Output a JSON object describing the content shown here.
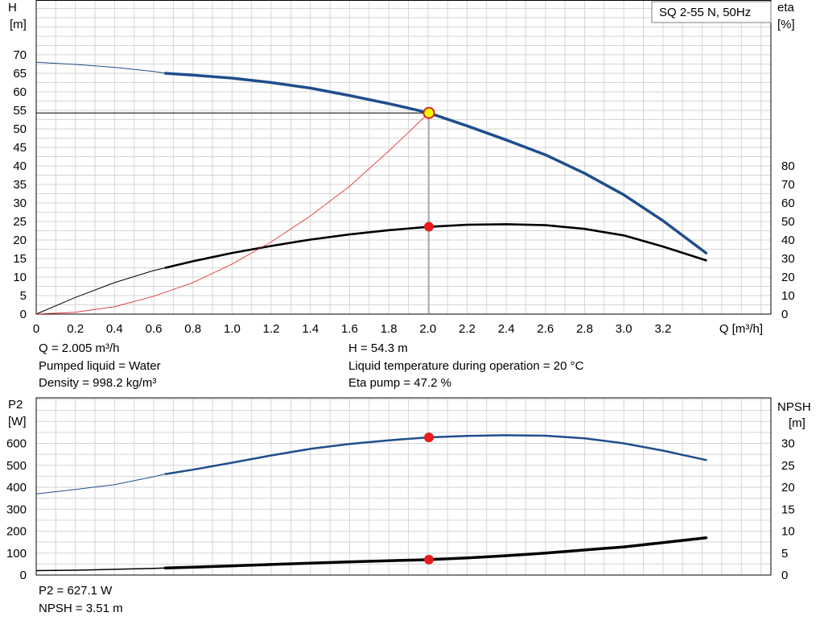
{
  "header": {
    "pump_name": "SQ 2-55 N, 50Hz"
  },
  "results_top": {
    "q": "Q = 2.005 m³/h",
    "liquid": "Pumped liquid = Water",
    "density": "Density = 998.2 kg/m³",
    "h": "H = 54.3 m",
    "temperature": "Liquid temperature during operation = 20 °C",
    "eta": "Eta pump = 47.2 %"
  },
  "results_bottom": {
    "p2": "P2 = 627.1 W",
    "npsh": "NPSH = 3.51 m"
  },
  "chart_data": [
    {
      "type": "line",
      "y_left_label": [
        "H",
        "[m]"
      ],
      "y_right_label": [
        "eta",
        "[%]"
      ],
      "x_label": "Q [m³/h]",
      "x_ticks": [
        "0",
        "0.2",
        "0.4",
        "0.6",
        "0.8",
        "1.0",
        "1.2",
        "1.4",
        "1.6",
        "1.8",
        "2.0",
        "2.2",
        "2.4",
        "2.6",
        "2.8",
        "3.0",
        "3.2"
      ],
      "x_lim": [
        0,
        3.6
      ],
      "y_left_ticks": [
        "0",
        "5",
        "10",
        "15",
        "20",
        "25",
        "30",
        "35",
        "40",
        "45",
        "50",
        "55",
        "60",
        "65",
        "70"
      ],
      "y_left_lim": [
        0,
        70
      ],
      "y_right_ticks": [
        "0",
        "10",
        "20",
        "30",
        "40",
        "50",
        "60",
        "70",
        "80"
      ],
      "y_right_lim": [
        0,
        140
      ],
      "grid": true,
      "operating_point": {
        "q": 2.005,
        "h": 54.3,
        "eta": 47.2
      },
      "series": [
        {
          "axis": "left",
          "color": "#1f4e8c",
          "points": [
            [
              0,
              68
            ],
            [
              0.2,
              67.4
            ],
            [
              0.4,
              66.6
            ],
            [
              0.6,
              65.5
            ],
            [
              0.66,
              65
            ],
            [
              0.8,
              64.5
            ],
            [
              1.0,
              63.7
            ],
            [
              1.2,
              62.5
            ],
            [
              1.4,
              61
            ],
            [
              1.6,
              59
            ],
            [
              1.8,
              56.8
            ],
            [
              2.0,
              54.4
            ],
            [
              2.2,
              50.8
            ],
            [
              2.4,
              47
            ],
            [
              2.6,
              43
            ],
            [
              2.8,
              38
            ],
            [
              3.0,
              32.2
            ],
            [
              3.2,
              25.2
            ],
            [
              3.42,
              16.5
            ]
          ]
        },
        {
          "axis": "left",
          "color": "#e02020",
          "points": [
            [
              0,
              0
            ],
            [
              0.2,
              0.5
            ],
            [
              0.4,
              2
            ],
            [
              0.6,
              4.8
            ],
            [
              0.8,
              8.5
            ],
            [
              1.0,
              13.5
            ],
            [
              1.2,
              19.5
            ],
            [
              1.4,
              26.5
            ],
            [
              1.6,
              34.5
            ],
            [
              1.8,
              44
            ],
            [
              2.005,
              54.3
            ]
          ]
        },
        {
          "axis": "right",
          "color": "#000000",
          "points": [
            [
              0,
              0
            ],
            [
              0.2,
              9
            ],
            [
              0.4,
              17
            ],
            [
              0.6,
              23.5
            ],
            [
              0.66,
              25
            ],
            [
              0.8,
              28.5
            ],
            [
              1.0,
              33
            ],
            [
              1.2,
              36.8
            ],
            [
              1.4,
              40.2
            ],
            [
              1.6,
              43
            ],
            [
              1.8,
              45.3
            ],
            [
              2.0,
              47.1
            ],
            [
              2.2,
              48.2
            ],
            [
              2.4,
              48.5
            ],
            [
              2.6,
              48
            ],
            [
              2.8,
              46
            ],
            [
              3.0,
              42.5
            ],
            [
              3.2,
              36.5
            ],
            [
              3.42,
              29
            ]
          ]
        }
      ]
    },
    {
      "type": "line",
      "y_left_label": [
        "P2",
        "[W]"
      ],
      "y_right_label": [
        "NPSH",
        "[m]"
      ],
      "x_lim": [
        0,
        3.6
      ],
      "y_left_ticks": [
        "0",
        "100",
        "200",
        "300",
        "400",
        "500",
        "600"
      ],
      "y_left_lim": [
        0,
        630
      ],
      "y_right_ticks": [
        "0",
        "5",
        "10",
        "15",
        "20",
        "25",
        "30"
      ],
      "y_right_lim": [
        0,
        31.5
      ],
      "grid": true,
      "operating_point": {
        "q": 2.005,
        "p2": 627.1,
        "npsh": 3.51
      },
      "series": [
        {
          "axis": "left",
          "color": "#1f4e8c",
          "points": [
            [
              0,
              370
            ],
            [
              0.2,
              390
            ],
            [
              0.4,
              412
            ],
            [
              0.6,
              448
            ],
            [
              0.66,
              460
            ],
            [
              0.8,
              480
            ],
            [
              1.0,
              512
            ],
            [
              1.2,
              545
            ],
            [
              1.4,
              575
            ],
            [
              1.6,
              597
            ],
            [
              1.8,
              614
            ],
            [
              2.0,
              627
            ],
            [
              2.2,
              634
            ],
            [
              2.4,
              637
            ],
            [
              2.6,
              635
            ],
            [
              2.8,
              623
            ],
            [
              3.0,
              600
            ],
            [
              3.2,
              567
            ],
            [
              3.42,
              524
            ]
          ]
        },
        {
          "axis": "right",
          "color": "#000000",
          "points": [
            [
              0,
              1.0
            ],
            [
              0.2,
              1.1
            ],
            [
              0.4,
              1.3
            ],
            [
              0.6,
              1.5
            ],
            [
              0.66,
              1.6
            ],
            [
              0.8,
              1.8
            ],
            [
              1.0,
              2.1
            ],
            [
              1.2,
              2.4
            ],
            [
              1.4,
              2.7
            ],
            [
              1.6,
              3.0
            ],
            [
              1.8,
              3.25
            ],
            [
              2.0,
              3.5
            ],
            [
              2.2,
              3.9
            ],
            [
              2.4,
              4.4
            ],
            [
              2.6,
              5.0
            ],
            [
              2.8,
              5.7
            ],
            [
              3.0,
              6.4
            ],
            [
              3.2,
              7.4
            ],
            [
              3.42,
              8.5
            ]
          ]
        }
      ]
    }
  ]
}
